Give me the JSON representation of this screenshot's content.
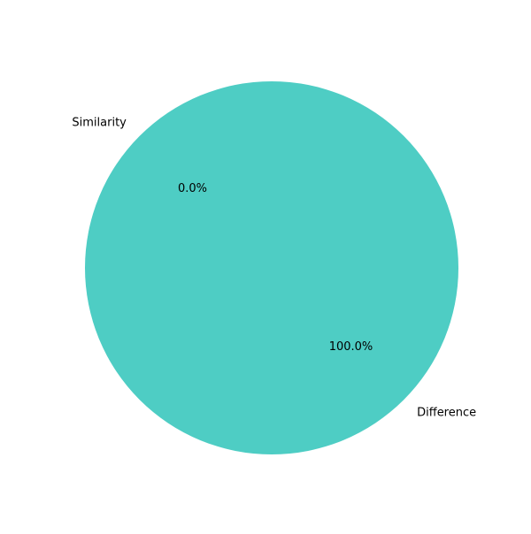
{
  "chart_data": {
    "type": "pie",
    "title": "",
    "slices": [
      {
        "label": "Similarity",
        "value": 0.0,
        "pct_label": "0.0%",
        "color": "#ff6b6b"
      },
      {
        "label": "Difference",
        "value": 100.0,
        "pct_label": "100.0%",
        "color": "#4ecdc4"
      }
    ],
    "start_angle_deg": 135,
    "direction": "counterclockwise",
    "legend": "none"
  }
}
